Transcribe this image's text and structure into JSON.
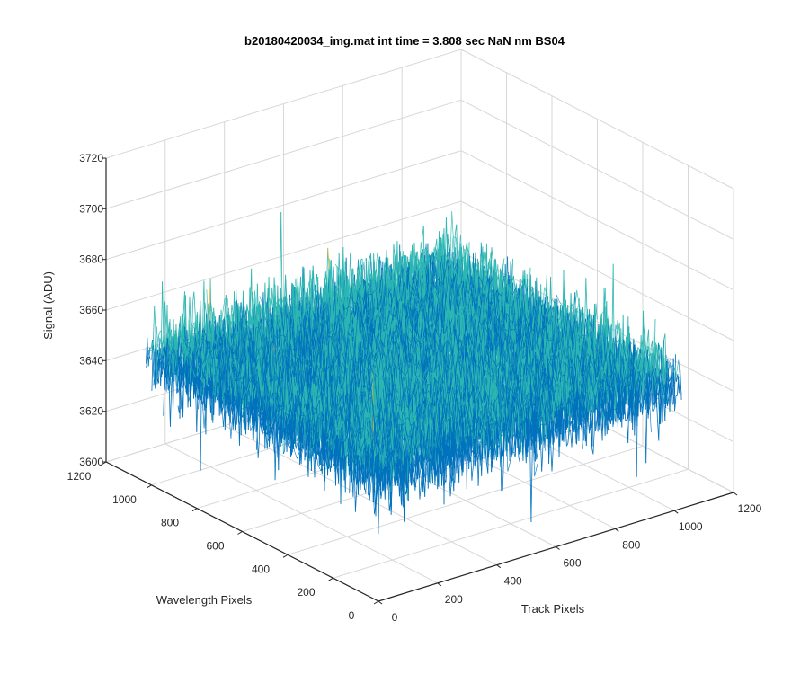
{
  "chart_data": {
    "type": "surface-mesh-3d",
    "title": "b20180420034_img.mat int time = 3.808 sec  NaN nm BS04",
    "xlabel": "Track Pixels",
    "ylabel": "Wavelength Pixels",
    "zlabel": "Signal (ADU)",
    "xlim": [
      0,
      1200
    ],
    "ylim": [
      0,
      1200
    ],
    "zlim": [
      3600,
      3720
    ],
    "x_ticks": [
      "0",
      "200",
      "400",
      "600",
      "800",
      "1000",
      "1200"
    ],
    "y_ticks": [
      "0",
      "200",
      "400",
      "600",
      "800",
      "1000",
      "1200"
    ],
    "z_ticks": [
      "3600",
      "3620",
      "3640",
      "3660",
      "3680",
      "3700",
      "3720"
    ],
    "data_extent": {
      "x": [
        0,
        1024
      ],
      "y": [
        0,
        1024
      ]
    },
    "signal_mean": 3650,
    "signal_spread": [
      3620,
      3705
    ],
    "grid": true,
    "colors": {
      "low": "#0072BD",
      "mid": "#2DB7B2",
      "high": "#D9B33A",
      "grid": "#D7D7D7",
      "axis": "#262626"
    }
  }
}
